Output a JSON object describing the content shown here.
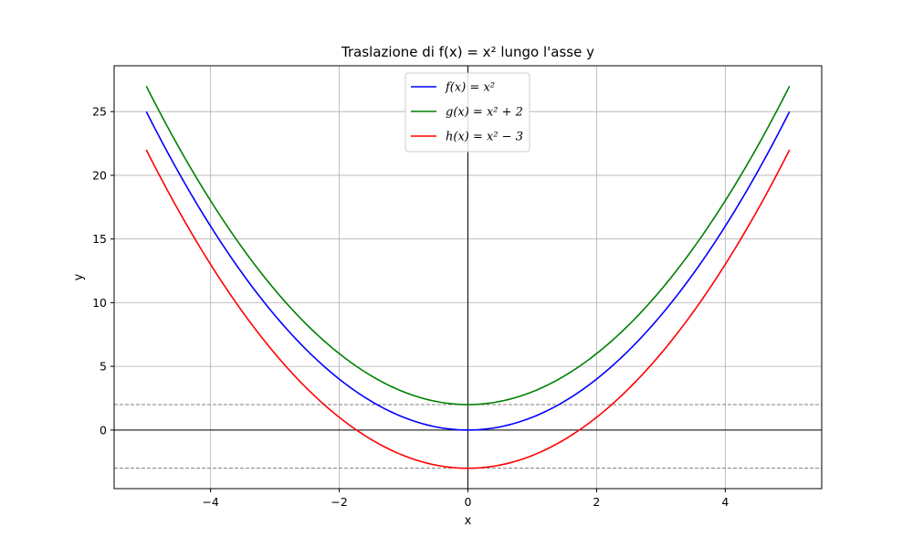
{
  "chart_data": {
    "type": "line",
    "title": "Traslazione di f(x) = x² lungo l'asse y",
    "xlabel": "x",
    "ylabel": "y",
    "xlim": [
      -5.5,
      5.5
    ],
    "ylim": [
      -4.6,
      28.6
    ],
    "grid": true,
    "legend_position": "top-center",
    "x_ticks": [
      -4,
      -2,
      0,
      2,
      4
    ],
    "x_tick_labels": [
      "−4",
      "−2",
      "0",
      "2",
      "4"
    ],
    "y_ticks": [
      0,
      5,
      10,
      15,
      20,
      25
    ],
    "y_tick_labels": [
      "0",
      "5",
      "10",
      "15",
      "20",
      "25"
    ],
    "x_domain": [
      -5,
      5
    ],
    "series": [
      {
        "name": "f(x) = x²",
        "offset": 0,
        "color": "#0000ff"
      },
      {
        "name": "g(x) = x² + 2",
        "offset": 2,
        "color": "#008000"
      },
      {
        "name": "h(x) = x² − 3",
        "offset": -3,
        "color": "#ff0000"
      }
    ],
    "reference_lines": {
      "horizontal_solid": [
        0
      ],
      "vertical_solid": [
        0
      ],
      "horizontal_dashed": [
        2,
        -3
      ],
      "dashed_color": "#808080"
    }
  }
}
